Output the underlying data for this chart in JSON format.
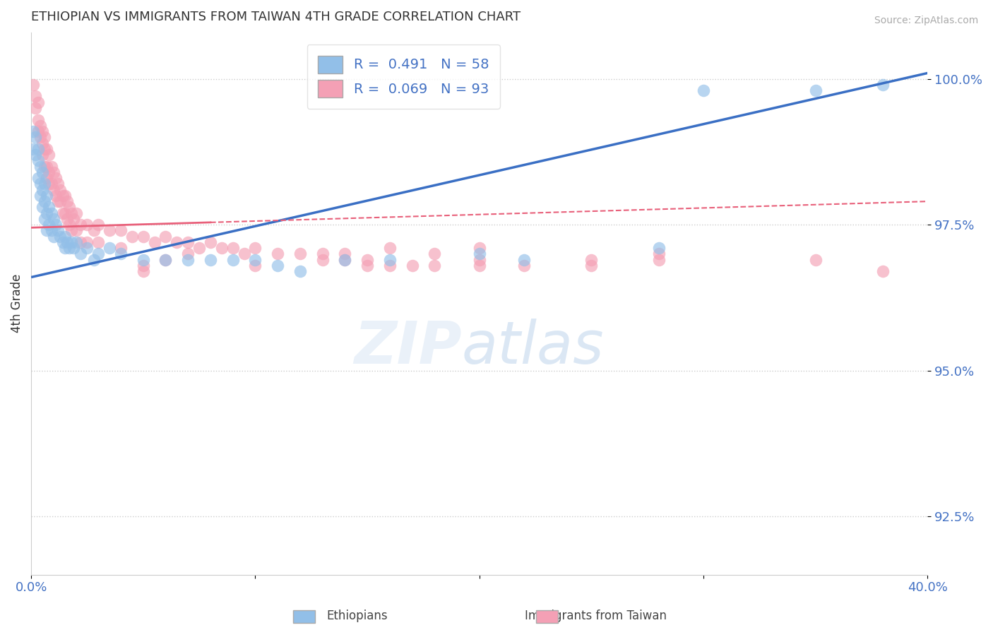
{
  "title": "ETHIOPIAN VS IMMIGRANTS FROM TAIWAN 4TH GRADE CORRELATION CHART",
  "source": "Source: ZipAtlas.com",
  "ylabel": "4th Grade",
  "xmin": 0.0,
  "xmax": 0.4,
  "ymin": 0.915,
  "ymax": 1.008,
  "yticks": [
    0.925,
    0.95,
    0.975,
    1.0
  ],
  "ytick_labels": [
    "92.5%",
    "95.0%",
    "97.5%",
    "100.0%"
  ],
  "blue_R": 0.491,
  "blue_N": 58,
  "pink_R": 0.069,
  "pink_N": 93,
  "blue_color": "#92bfe8",
  "pink_color": "#f4a0b5",
  "blue_line_color": "#3a6fc4",
  "pink_line_color": "#e8607a",
  "blue_scatter": [
    [
      0.001,
      0.991
    ],
    [
      0.001,
      0.988
    ],
    [
      0.002,
      0.99
    ],
    [
      0.002,
      0.987
    ],
    [
      0.003,
      0.986
    ],
    [
      0.003,
      0.983
    ],
    [
      0.003,
      0.988
    ],
    [
      0.004,
      0.985
    ],
    [
      0.004,
      0.982
    ],
    [
      0.004,
      0.98
    ],
    [
      0.005,
      0.984
    ],
    [
      0.005,
      0.981
    ],
    [
      0.005,
      0.978
    ],
    [
      0.006,
      0.982
    ],
    [
      0.006,
      0.979
    ],
    [
      0.006,
      0.976
    ],
    [
      0.007,
      0.98
    ],
    [
      0.007,
      0.977
    ],
    [
      0.007,
      0.974
    ],
    [
      0.008,
      0.978
    ],
    [
      0.008,
      0.975
    ],
    [
      0.009,
      0.977
    ],
    [
      0.009,
      0.974
    ],
    [
      0.01,
      0.976
    ],
    [
      0.01,
      0.973
    ],
    [
      0.011,
      0.975
    ],
    [
      0.012,
      0.974
    ],
    [
      0.013,
      0.973
    ],
    [
      0.014,
      0.972
    ],
    [
      0.015,
      0.973
    ],
    [
      0.015,
      0.971
    ],
    [
      0.016,
      0.972
    ],
    [
      0.017,
      0.971
    ],
    [
      0.018,
      0.972
    ],
    [
      0.019,
      0.971
    ],
    [
      0.02,
      0.972
    ],
    [
      0.022,
      0.97
    ],
    [
      0.025,
      0.971
    ],
    [
      0.028,
      0.969
    ],
    [
      0.03,
      0.97
    ],
    [
      0.035,
      0.971
    ],
    [
      0.04,
      0.97
    ],
    [
      0.05,
      0.969
    ],
    [
      0.06,
      0.969
    ],
    [
      0.07,
      0.969
    ],
    [
      0.08,
      0.969
    ],
    [
      0.09,
      0.969
    ],
    [
      0.1,
      0.969
    ],
    [
      0.11,
      0.968
    ],
    [
      0.12,
      0.967
    ],
    [
      0.14,
      0.969
    ],
    [
      0.16,
      0.969
    ],
    [
      0.2,
      0.97
    ],
    [
      0.22,
      0.969
    ],
    [
      0.28,
      0.971
    ],
    [
      0.3,
      0.998
    ],
    [
      0.35,
      0.998
    ],
    [
      0.38,
      0.999
    ]
  ],
  "pink_scatter": [
    [
      0.001,
      0.999
    ],
    [
      0.002,
      0.997
    ],
    [
      0.002,
      0.995
    ],
    [
      0.003,
      0.996
    ],
    [
      0.003,
      0.993
    ],
    [
      0.003,
      0.991
    ],
    [
      0.004,
      0.992
    ],
    [
      0.004,
      0.99
    ],
    [
      0.005,
      0.991
    ],
    [
      0.005,
      0.989
    ],
    [
      0.005,
      0.987
    ],
    [
      0.006,
      0.99
    ],
    [
      0.006,
      0.988
    ],
    [
      0.006,
      0.985
    ],
    [
      0.007,
      0.988
    ],
    [
      0.007,
      0.985
    ],
    [
      0.007,
      0.983
    ],
    [
      0.008,
      0.987
    ],
    [
      0.008,
      0.984
    ],
    [
      0.008,
      0.982
    ],
    [
      0.009,
      0.985
    ],
    [
      0.009,
      0.982
    ],
    [
      0.01,
      0.984
    ],
    [
      0.01,
      0.981
    ],
    [
      0.011,
      0.983
    ],
    [
      0.011,
      0.98
    ],
    [
      0.012,
      0.982
    ],
    [
      0.012,
      0.979
    ],
    [
      0.013,
      0.981
    ],
    [
      0.013,
      0.979
    ],
    [
      0.014,
      0.98
    ],
    [
      0.014,
      0.977
    ],
    [
      0.015,
      0.98
    ],
    [
      0.015,
      0.977
    ],
    [
      0.016,
      0.979
    ],
    [
      0.016,
      0.976
    ],
    [
      0.017,
      0.978
    ],
    [
      0.017,
      0.975
    ],
    [
      0.018,
      0.977
    ],
    [
      0.018,
      0.974
    ],
    [
      0.019,
      0.976
    ],
    [
      0.02,
      0.977
    ],
    [
      0.02,
      0.974
    ],
    [
      0.022,
      0.975
    ],
    [
      0.022,
      0.972
    ],
    [
      0.025,
      0.975
    ],
    [
      0.025,
      0.972
    ],
    [
      0.028,
      0.974
    ],
    [
      0.03,
      0.975
    ],
    [
      0.03,
      0.972
    ],
    [
      0.035,
      0.974
    ],
    [
      0.04,
      0.974
    ],
    [
      0.04,
      0.971
    ],
    [
      0.045,
      0.973
    ],
    [
      0.05,
      0.973
    ],
    [
      0.055,
      0.972
    ],
    [
      0.06,
      0.973
    ],
    [
      0.065,
      0.972
    ],
    [
      0.07,
      0.972
    ],
    [
      0.075,
      0.971
    ],
    [
      0.08,
      0.972
    ],
    [
      0.085,
      0.971
    ],
    [
      0.09,
      0.971
    ],
    [
      0.095,
      0.97
    ],
    [
      0.1,
      0.971
    ],
    [
      0.11,
      0.97
    ],
    [
      0.12,
      0.97
    ],
    [
      0.13,
      0.969
    ],
    [
      0.14,
      0.969
    ],
    [
      0.15,
      0.968
    ],
    [
      0.16,
      0.968
    ],
    [
      0.17,
      0.968
    ],
    [
      0.18,
      0.968
    ],
    [
      0.2,
      0.969
    ],
    [
      0.22,
      0.968
    ],
    [
      0.25,
      0.968
    ],
    [
      0.05,
      0.968
    ],
    [
      0.06,
      0.969
    ],
    [
      0.07,
      0.97
    ],
    [
      0.13,
      0.97
    ],
    [
      0.14,
      0.97
    ],
    [
      0.16,
      0.971
    ],
    [
      0.18,
      0.97
    ],
    [
      0.2,
      0.971
    ],
    [
      0.25,
      0.969
    ],
    [
      0.28,
      0.97
    ],
    [
      0.05,
      0.967
    ],
    [
      0.1,
      0.968
    ],
    [
      0.15,
      0.969
    ],
    [
      0.2,
      0.968
    ],
    [
      0.28,
      0.969
    ],
    [
      0.35,
      0.969
    ],
    [
      0.38,
      0.967
    ]
  ],
  "legend_label_blue": "Ethiopians",
  "legend_label_pink": "Immigrants from Taiwan",
  "background_color": "#ffffff",
  "grid_color": "#cccccc"
}
